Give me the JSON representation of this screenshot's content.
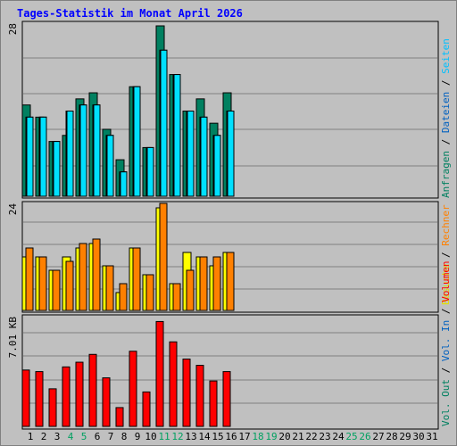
{
  "title": "Tages-Statistik im Monat April 2026",
  "colors": {
    "background": "#c0c0c0",
    "plot_bg": "#c0c0c0",
    "grid": "#808080",
    "anfragen": "#008060",
    "dateien": "#00c0ff",
    "seiten": "#00e0ff",
    "besuche": "#ffff00",
    "rechner": "#ff8000",
    "vol_out": "#00a060",
    "vol_in": "#0060c0",
    "volumen": "#ff0000",
    "weekend_label": "#00a060",
    "weekday_label": "#000000"
  },
  "right_legend": {
    "panel1": [
      {
        "text": "Anfragen",
        "color": "#008060"
      },
      {
        "text": " / ",
        "color": "#000000"
      },
      {
        "text": "Dateien",
        "color": "#0060c0"
      },
      {
        "text": " / ",
        "color": "#000000"
      },
      {
        "text": "Seiten",
        "color": "#00c0ff"
      }
    ],
    "panel2": [
      {
        "text": "Besuche",
        "color": "#e0e000"
      },
      {
        "text": " / ",
        "color": "#000000"
      },
      {
        "text": "Rechner",
        "color": "#ff8000"
      }
    ],
    "panel3": [
      {
        "text": "Vol. Out",
        "color": "#008060"
      },
      {
        "text": " / ",
        "color": "#000000"
      },
      {
        "text": "Vol. In",
        "color": "#0060c0"
      },
      {
        "text": " / ",
        "color": "#000000"
      },
      {
        "text": "Volumen",
        "color": "#ff0000"
      }
    ]
  },
  "chart_data": [
    {
      "type": "bar",
      "panel": "requests",
      "ymax_label": "28",
      "ylim": [
        0,
        28
      ],
      "categories": [
        "1",
        "2",
        "3",
        "4",
        "5",
        "6",
        "7",
        "8",
        "9",
        "10",
        "11",
        "12",
        "13",
        "14",
        "15",
        "16",
        "17",
        "18",
        "19",
        "20",
        "21",
        "22",
        "23",
        "24",
        "25",
        "26",
        "27",
        "28",
        "29",
        "30",
        "31"
      ],
      "weekend_days": [
        "4",
        "5",
        "11",
        "12",
        "18",
        "19",
        "25",
        "26"
      ],
      "series": [
        {
          "name": "Anfragen",
          "values": [
            15,
            13,
            9,
            10,
            16,
            17,
            11,
            6,
            18,
            8,
            28,
            20,
            14,
            16,
            12,
            17,
            0,
            0,
            0,
            0,
            0,
            0,
            0,
            0,
            0,
            0,
            0,
            0,
            0,
            0,
            0
          ]
        },
        {
          "name": "Dateien",
          "values": [
            13,
            13,
            9,
            14,
            15,
            15,
            10,
            4,
            18,
            8,
            24,
            20,
            14,
            13,
            10,
            14,
            0,
            0,
            0,
            0,
            0,
            0,
            0,
            0,
            0,
            0,
            0,
            0,
            0,
            0,
            0
          ]
        },
        {
          "name": "Seiten",
          "values": [
            13,
            13,
            9,
            14,
            15,
            15,
            10,
            4,
            18,
            8,
            24,
            20,
            14,
            13,
            10,
            14,
            0,
            0,
            0,
            0,
            0,
            0,
            0,
            0,
            0,
            0,
            0,
            0,
            0,
            0,
            0
          ]
        }
      ]
    },
    {
      "type": "bar",
      "panel": "visits",
      "ymax_label": "24",
      "ylim": [
        0,
        24
      ],
      "categories": [
        "1",
        "2",
        "3",
        "4",
        "5",
        "6",
        "7",
        "8",
        "9",
        "10",
        "11",
        "12",
        "13",
        "14",
        "15",
        "16",
        "17",
        "18",
        "19",
        "20",
        "21",
        "22",
        "23",
        "24",
        "25",
        "26",
        "27",
        "28",
        "29",
        "30",
        "31"
      ],
      "series": [
        {
          "name": "Besuche",
          "values": [
            12,
            12,
            9,
            12,
            14,
            15,
            10,
            4,
            14,
            8,
            23,
            6,
            13,
            12,
            10,
            13,
            0,
            0,
            0,
            0,
            0,
            0,
            0,
            0,
            0,
            0,
            0,
            0,
            0,
            0,
            0
          ]
        },
        {
          "name": "Rechner",
          "values": [
            14,
            12,
            9,
            11,
            15,
            16,
            10,
            6,
            14,
            8,
            24,
            6,
            9,
            12,
            12,
            13,
            0,
            0,
            0,
            0,
            0,
            0,
            0,
            0,
            0,
            0,
            0,
            0,
            0,
            0,
            0
          ]
        }
      ]
    },
    {
      "type": "bar",
      "panel": "volume",
      "ymax_label": "7.01 KB",
      "ylim": [
        0,
        7.01
      ],
      "categories": [
        "1",
        "2",
        "3",
        "4",
        "5",
        "6",
        "7",
        "8",
        "9",
        "10",
        "11",
        "12",
        "13",
        "14",
        "15",
        "16",
        "17",
        "18",
        "19",
        "20",
        "21",
        "22",
        "23",
        "24",
        "25",
        "26",
        "27",
        "28",
        "29",
        "30",
        "31"
      ],
      "series": [
        {
          "name": "Volumen",
          "values": [
            3.6,
            3.5,
            2.4,
            3.8,
            4.1,
            4.6,
            3.1,
            1.2,
            4.8,
            2.2,
            6.7,
            5.4,
            4.3,
            3.9,
            2.9,
            3.5,
            0,
            0,
            0,
            0,
            0,
            0,
            0,
            0,
            0,
            0,
            0,
            0,
            0,
            0,
            0
          ]
        }
      ]
    }
  ]
}
